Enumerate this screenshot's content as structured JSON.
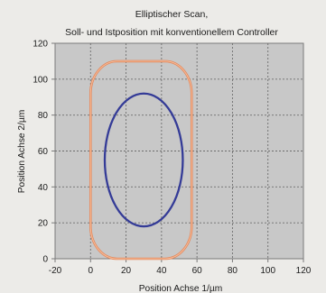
{
  "chart_data": {
    "type": "line",
    "title": "Elliptischer Scan,",
    "subtitle": "Soll- und Istposition mit konventionellem Controller",
    "xlabel": "Position Achse 1/µm",
    "ylabel": "Position Achse 2/µm",
    "xlim": [
      -20,
      120
    ],
    "ylim": [
      0,
      120
    ],
    "xticks": [
      -20,
      0,
      20,
      40,
      60,
      80,
      100,
      120
    ],
    "yticks": [
      0,
      20,
      40,
      60,
      80,
      100,
      120
    ],
    "grid": true,
    "legend": "none",
    "colors": {
      "page_background": "#ecebe8",
      "plot_background": "#c8c8c8",
      "grid": "#6d6d6d",
      "text": "#1a1a1a"
    },
    "series": [
      {
        "kind": "ellipse",
        "color": "#343b97",
        "center": [
          30,
          55
        ],
        "radius_x": 22,
        "radius_y": 37
      },
      {
        "kind": "rounded_rect",
        "color": "#e3875b",
        "x_range": [
          0,
          57
        ],
        "y_range": [
          0,
          110
        ],
        "corner_x": 15,
        "corner_y": 18
      }
    ]
  }
}
